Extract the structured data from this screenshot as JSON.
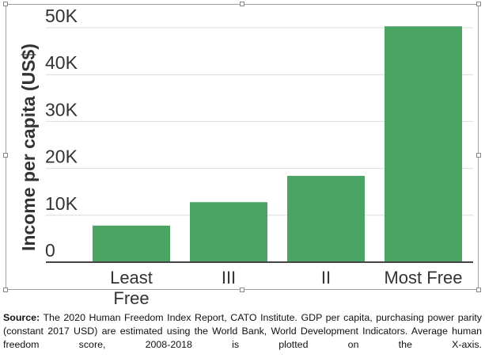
{
  "chart_data": {
    "type": "bar",
    "categories": [
      "Least Free",
      "III",
      "II",
      "Most Free"
    ],
    "values": [
      7800,
      12800,
      18400,
      50300
    ],
    "ylabel": "Income per capita (US$)",
    "xlabel": "",
    "ylim": [
      0,
      50000
    ],
    "yticks": [
      0,
      10000,
      20000,
      30000,
      40000,
      50000
    ],
    "ytick_labels": [
      "0",
      "10K",
      "20K",
      "30K",
      "40K",
      "50K"
    ],
    "grid": true,
    "bar_color": "#4aa564"
  },
  "caption": {
    "source_label": "Source:",
    "text": "The 2020 Human Freedom Index Report, CATO Institute. GDP per capita, purchasing power parity (constant 2017 USD) are estimated using the World Bank, World Development Indicators. Average human freedom score, 2008-2018 is plotted on the X-axis."
  }
}
